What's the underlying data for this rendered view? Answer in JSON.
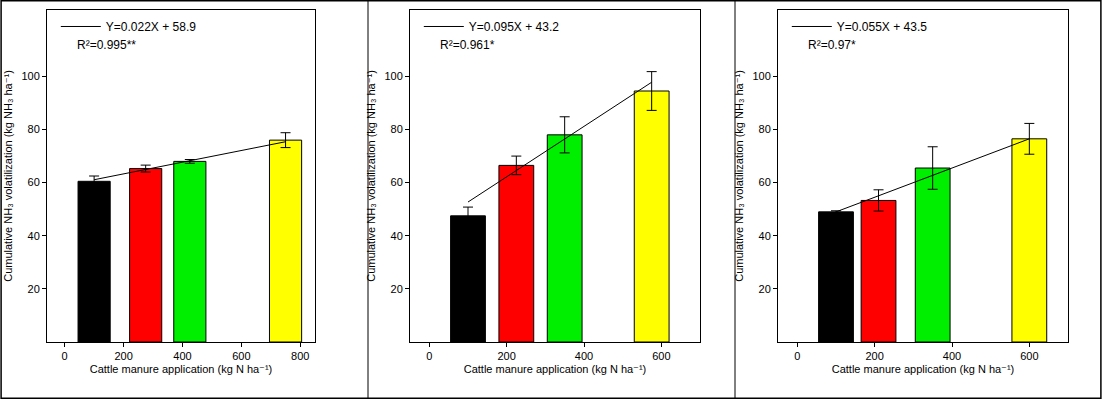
{
  "chart_data": [
    {
      "type": "bar",
      "xlabel": "Cattle manure application (kg N ha⁻¹)",
      "ylabel": "Cumulative NH₃ volatilization (kg NH₃ ha⁻¹)",
      "xlim": [
        -60,
        850
      ],
      "ylim": [
        0,
        125
      ],
      "xticks": [
        0,
        200,
        400,
        600,
        800
      ],
      "yticks": [
        20,
        40,
        60,
        80,
        100
      ],
      "legend": "upper left",
      "annotations": [
        "R²=0.995**"
      ],
      "series": [
        {
          "type": "bar",
          "x": [
            100,
            275,
            425,
            750
          ],
          "values": [
            60.5,
            65.3,
            68.0,
            76.0
          ],
          "error": [
            2.0,
            1.3,
            0.7,
            2.8
          ],
          "colors": [
            "#000000",
            "#ff0000",
            "#00ee00",
            "#ffff00"
          ]
        },
        {
          "type": "line",
          "name": "Y=0.022X + 58.9",
          "x": [
            100,
            750
          ],
          "values": [
            61.1,
            75.4
          ],
          "color": "#000000"
        }
      ]
    },
    {
      "type": "bar",
      "xlabel": "Cattle manure application (kg N ha⁻¹)",
      "ylabel": "Cumulative NH₃ volatilization (kg NH₃ ha⁻¹)",
      "xlim": [
        -50,
        700
      ],
      "ylim": [
        0,
        125
      ],
      "xticks": [
        0,
        200,
        400,
        600
      ],
      "yticks": [
        20,
        40,
        60,
        80,
        100
      ],
      "legend": "upper left",
      "annotations": [
        "R²=0.961*"
      ],
      "series": [
        {
          "type": "bar",
          "x": [
            100,
            225,
            350,
            575
          ],
          "values": [
            47.5,
            66.5,
            78.0,
            94.5
          ],
          "error": [
            3.3,
            3.5,
            6.8,
            7.3
          ],
          "colors": [
            "#000000",
            "#ff0000",
            "#00ee00",
            "#ffff00"
          ]
        },
        {
          "type": "line",
          "name": "Y=0.095X + 43.2",
          "x": [
            100,
            575
          ],
          "values": [
            52.7,
            97.8
          ],
          "color": "#000000"
        }
      ]
    },
    {
      "type": "bar",
      "xlabel": "Cattle manure application (kg N ha⁻¹)",
      "ylabel": "Cumulative NH₃ volatilization (kg NH₃ ha⁻¹)",
      "xlim": [
        -50,
        700
      ],
      "ylim": [
        0,
        125
      ],
      "xticks": [
        0,
        200,
        400,
        600
      ],
      "yticks": [
        20,
        40,
        60,
        80,
        100
      ],
      "legend": "upper left",
      "annotations": [
        "R²=0.97*"
      ],
      "series": [
        {
          "type": "bar",
          "x": [
            100,
            210,
            350,
            600
          ],
          "values": [
            49.0,
            53.3,
            65.5,
            76.5
          ],
          "error": [
            0.4,
            4.0,
            8.0,
            5.8
          ],
          "colors": [
            "#000000",
            "#ff0000",
            "#00ee00",
            "#ffff00"
          ]
        },
        {
          "type": "line",
          "name": "Y=0.055X + 43.5",
          "x": [
            100,
            600
          ],
          "values": [
            49.0,
            76.5
          ],
          "color": "#000000"
        }
      ]
    }
  ]
}
